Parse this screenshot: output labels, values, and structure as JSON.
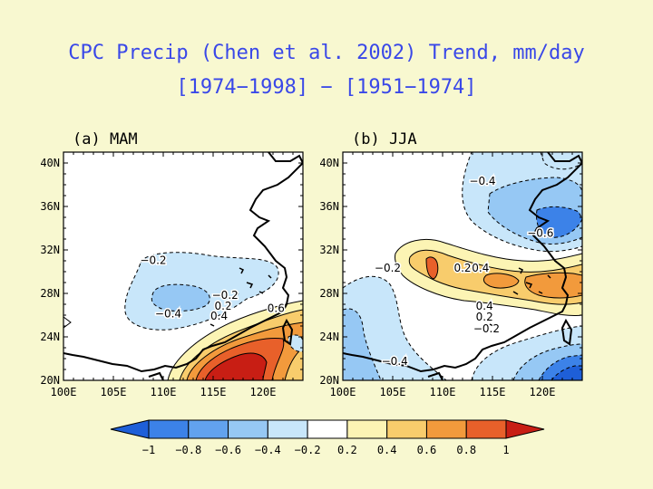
{
  "title": "CPC Precip (Chen et al. 2002) Trend, mm/day",
  "subtitle": "[1974−1998] − [1951−1974]",
  "colors": {
    "n10": "#1e5fd8",
    "n08": "#3c82e8",
    "n06": "#62a2ee",
    "n04": "#96c8f4",
    "n02": "#c8e6fa",
    "zero": "#ffffff",
    "p02": "#fcf4b4",
    "p04": "#f8cc6c",
    "p06": "#f29a3c",
    "p08": "#e8602a",
    "p10": "#c81e14"
  },
  "chart_data": [
    {
      "type": "heatmap",
      "panel_label": "(a) MAM",
      "ytick_labels": [
        "40N",
        "36N",
        "32N",
        "28N",
        "24N",
        "20N"
      ],
      "xtick_labels": [
        "100E",
        "105E",
        "110E",
        "115E",
        "120E"
      ],
      "xlim": [
        100,
        124
      ],
      "ylim": [
        20,
        41
      ],
      "contour_labels": [
        {
          "text": "−0.2",
          "lon": 109.0,
          "lat": 30.7
        },
        {
          "text": "−0.2",
          "lon": 116.2,
          "lat": 27.5
        },
        {
          "text": "−0.4",
          "lon": 110.5,
          "lat": 25.8
        },
        {
          "text": "0.2",
          "lon": 116.0,
          "lat": 26.5
        },
        {
          "text": "0.4",
          "lon": 115.6,
          "lat": 25.6
        },
        {
          "text": "0.6",
          "lon": 121.3,
          "lat": 26.3
        }
      ]
    },
    {
      "type": "heatmap",
      "panel_label": "(b) JJA",
      "ytick_labels": [
        "40N",
        "36N",
        "32N",
        "28N",
        "24N",
        "20N"
      ],
      "xtick_labels": [
        "100E",
        "105E",
        "110E",
        "115E",
        "120E"
      ],
      "xlim": [
        100,
        124
      ],
      "ylim": [
        20,
        41
      ],
      "contour_labels": [
        {
          "text": "−0.4",
          "lon": 114.0,
          "lat": 38.0
        },
        {
          "text": "−0.6",
          "lon": 119.8,
          "lat": 33.2
        },
        {
          "text": "−0.2",
          "lon": 104.5,
          "lat": 30.0
        },
        {
          "text": "0.2",
          "lon": 112.0,
          "lat": 30.0
        },
        {
          "text": "0.4",
          "lon": 113.8,
          "lat": 30.0
        },
        {
          "text": "0.4",
          "lon": 114.2,
          "lat": 26.5
        },
        {
          "text": "0.2",
          "lon": 114.2,
          "lat": 25.5
        },
        {
          "text": "−0.2",
          "lon": 114.4,
          "lat": 24.4
        },
        {
          "text": "−0.4",
          "lon": 105.2,
          "lat": 21.4
        }
      ]
    }
  ],
  "colorbar": {
    "tick_labels": [
      "−1",
      "−0.8",
      "−0.6",
      "−0.4",
      "−0.2",
      "0.2",
      "0.4",
      "0.6",
      "0.8",
      "1"
    ]
  }
}
